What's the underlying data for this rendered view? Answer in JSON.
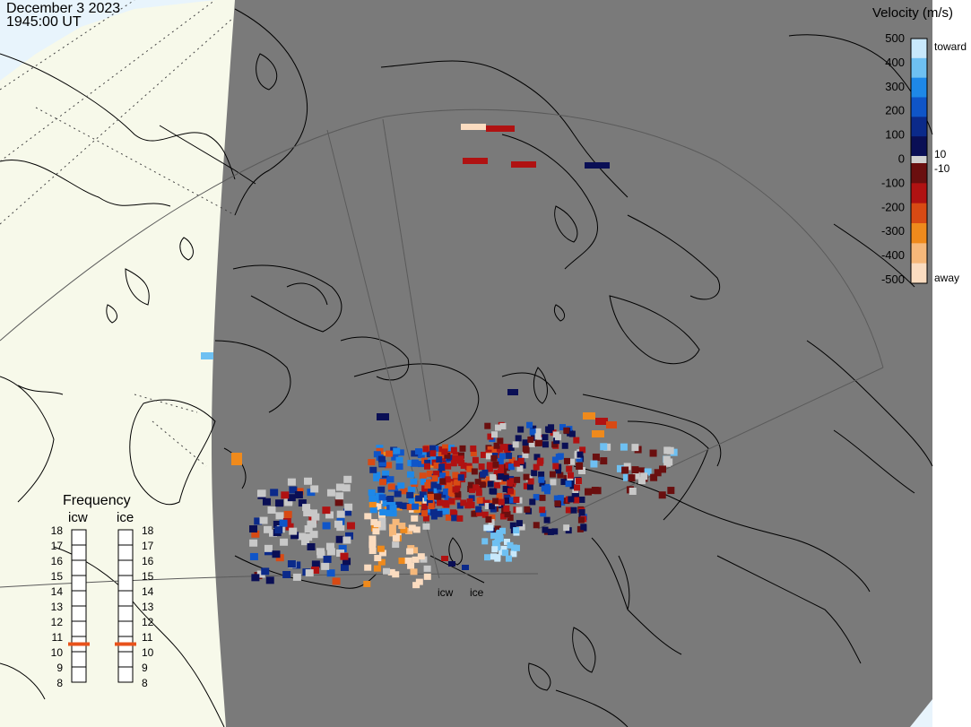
{
  "header": {
    "date": "December 3 2023",
    "time": "1945:00 UT"
  },
  "colorbar": {
    "title": "Velocity (m/s)",
    "ticks": [
      "500",
      "400",
      "300",
      "200",
      "100",
      "0",
      "-100",
      "-200",
      "-300",
      "-400",
      "-500"
    ],
    "toward_label": "toward",
    "away_label": "away",
    "small_pos": "10",
    "small_neg": "-10",
    "toward_colors": [
      "#0a0f55",
      "#0b2a8a",
      "#0f55c8",
      "#1e88e8",
      "#6ec0f2",
      "#c8e8fb"
    ],
    "away_colors": [
      "#6a0f0f",
      "#b01212",
      "#d84a14",
      "#ef8a1c",
      "#f6b87a",
      "#fbdcc0"
    ]
  },
  "frequency": {
    "title": "Frequency",
    "columns": [
      {
        "name": "icw",
        "selected_mhz": 10.5
      },
      {
        "name": "ice",
        "selected_mhz": 10.5
      }
    ],
    "scale": [
      "18",
      "17",
      "16",
      "15",
      "14",
      "13",
      "12",
      "11",
      "10",
      "9",
      "8"
    ],
    "marker_color": "#e8521b"
  },
  "radars": [
    {
      "code": "icw"
    },
    {
      "code": "ice"
    }
  ],
  "colors": {
    "nightside": "#7a7a7a",
    "ocean": "#e8f4fc",
    "land": "#f7f9ea",
    "ground_scatter": "#c8c8c8",
    "coast": "#000000",
    "grid": "#555555"
  },
  "chart_data": {
    "type": "map",
    "velocity_range_mps": [
      -500,
      500
    ],
    "frequency_range_mhz": [
      8,
      18
    ]
  }
}
